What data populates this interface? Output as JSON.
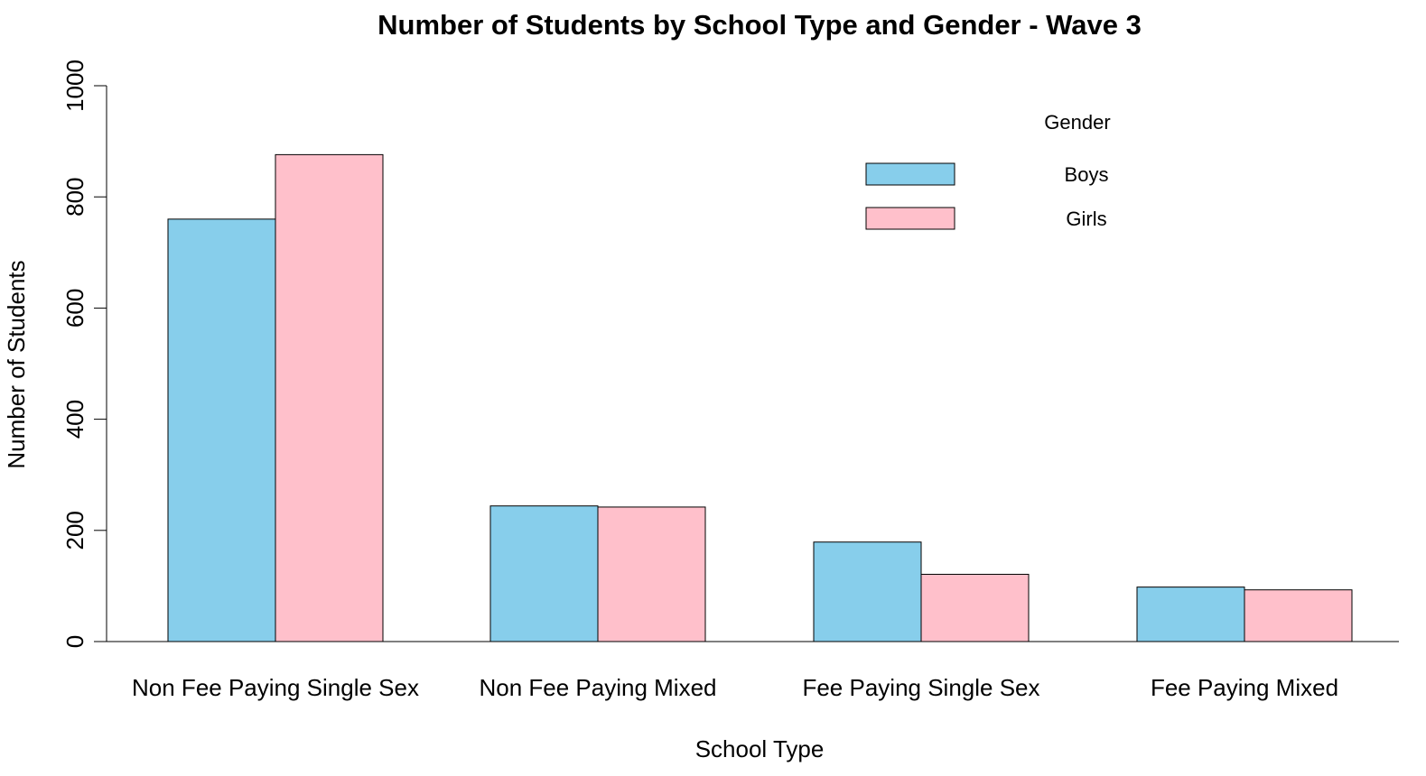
{
  "chart_data": {
    "type": "bar",
    "title": "Number of Students by School Type and Gender - Wave 3",
    "xlabel": "School Type",
    "ylabel": "Number of Students",
    "categories": [
      "Non Fee Paying Single Sex",
      "Non Fee Paying Mixed",
      "Fee Paying Single Sex",
      "Fee Paying Mixed"
    ],
    "series": [
      {
        "name": "Boys",
        "values": [
          760,
          244,
          179,
          98
        ],
        "color": "#87CEEB"
      },
      {
        "name": "Girls",
        "values": [
          876,
          242,
          121,
          93
        ],
        "color": "#FFC0CB"
      }
    ],
    "ylim": [
      0,
      1000
    ],
    "yticks": [
      "0",
      "200",
      "400",
      "600",
      "800",
      "1000"
    ],
    "grid": false,
    "legend": {
      "title": "Gender",
      "position": "top-right",
      "entries": [
        "Boys",
        "Girls"
      ]
    }
  }
}
